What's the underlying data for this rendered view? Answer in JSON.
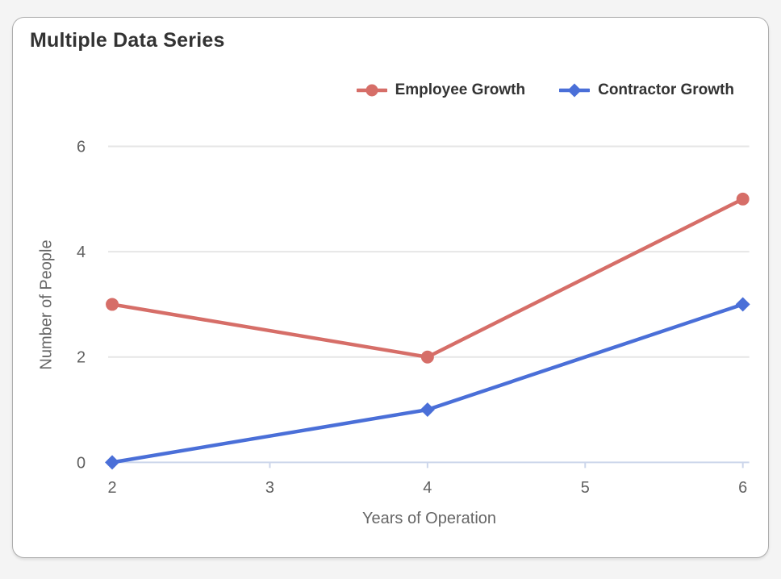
{
  "chart_data": {
    "type": "line",
    "title": "Multiple Data Series",
    "xlabel": "Years of Operation",
    "ylabel": "Number of People",
    "x": [
      2,
      4,
      6
    ],
    "series": [
      {
        "name": "Employee Growth",
        "values": [
          3,
          2,
          5
        ],
        "color": "#d66e68",
        "marker": "circle"
      },
      {
        "name": "Contractor Growth",
        "values": [
          0,
          1,
          3
        ],
        "color": "#4a6fd8",
        "marker": "diamond"
      }
    ],
    "xlim": [
      2,
      6
    ],
    "ylim": [
      0,
      6
    ],
    "x_ticks": [
      2,
      3,
      4,
      5,
      6
    ],
    "y_ticks": [
      0,
      2,
      4,
      6
    ],
    "grid": "horizontal",
    "legend_position": "top-right"
  },
  "styles": {
    "page_bg": "#f4f4f4",
    "card_bg": "#ffffff",
    "card_border": "#aeaeae",
    "grid_color": "#e6e6e6",
    "axis_line_color": "#ccd6eb",
    "tick_label_color": "#616161",
    "axis_title_color": "#666666",
    "title_color": "#333333",
    "legend_text_color": "#333333"
  }
}
